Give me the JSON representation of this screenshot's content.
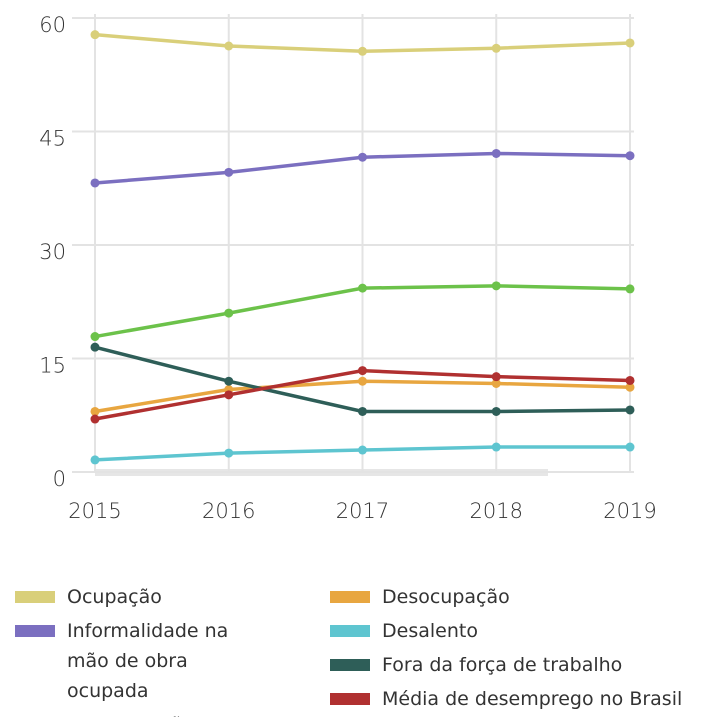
{
  "chart_data": {
    "type": "line",
    "x": [
      "2015",
      "2016",
      "2017",
      "2018",
      "2019"
    ],
    "ylim": [
      0,
      60
    ],
    "yticks": [
      0,
      15,
      30,
      45,
      60
    ],
    "grid": true,
    "series": [
      {
        "name": "Ocupação",
        "color": "#d9cf7a",
        "values": [
          57.8,
          56.3,
          55.6,
          56.0,
          56.7
        ]
      },
      {
        "name": "Informalidade na mão de obra ocupada",
        "color": "#7b6fc0",
        "values": [
          38.2,
          39.6,
          41.6,
          42.1,
          41.8
        ]
      },
      {
        "name": "Subutilização",
        "color": "#6cc24a",
        "values": [
          17.9,
          21.0,
          24.3,
          24.6,
          24.2
        ]
      },
      {
        "name": "Desocupação",
        "color": "#e8a640",
        "values": [
          8.0,
          10.9,
          12.0,
          11.7,
          11.2
        ]
      },
      {
        "name": "Desalento",
        "color": "#5ec5d0",
        "values": [
          1.6,
          2.5,
          2.9,
          3.3,
          3.3
        ]
      },
      {
        "name": "Fora da força de trabalho",
        "color": "#2e5e58",
        "values": [
          16.5,
          12.0,
          8.0,
          8.0,
          8.2
        ]
      },
      {
        "name": "Média de desemprego no Brasil",
        "color": "#b03030",
        "values": [
          7.0,
          10.2,
          13.4,
          12.6,
          12.1
        ]
      }
    ]
  }
}
